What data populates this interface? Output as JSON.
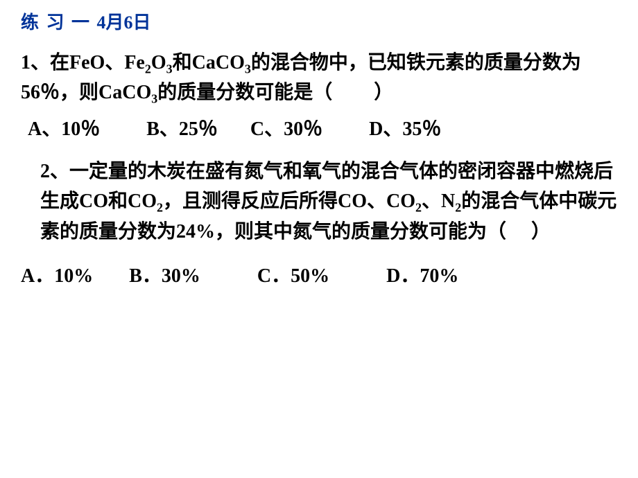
{
  "header": {
    "title": "练 习 一",
    "date": "4月6日",
    "color": "#003399",
    "fontsize": 26
  },
  "question1": {
    "number": "1、",
    "text_parts": {
      "p1": "在FeO、Fe",
      "p2": "O",
      "p3": "和CaCO",
      "p4": "的混合物中，已知铁元素的质量分数为56％，则CaCO",
      "p5": "的质量分数可能是（",
      "p6": "）"
    },
    "subscripts": {
      "s1": "2",
      "s2": "3",
      "s3": "3",
      "s4": "3"
    },
    "options": {
      "a": "A、10％",
      "b": "B、25％",
      "c": "C、30％",
      "d": "D、35％"
    }
  },
  "question2": {
    "number": "2、",
    "text_parts": {
      "p1": "一定量的木炭在盛有氮气和氧气的混合气体的密闭容器中燃烧后生成CO和CO",
      "p2": "，且测得反应后所得CO、CO",
      "p3": "、N",
      "p4": "的混合气体中碳元素的质量分数为24%，则其中氮气的质量分数可能为（",
      "p5": "）"
    },
    "subscripts": {
      "s1": "2",
      "s2": "2",
      "s3": "2"
    },
    "options": {
      "a": "A．10%",
      "b": "B．30%",
      "c": "C．50%",
      "d": "D．70%"
    }
  },
  "styling": {
    "background_color": "#ffffff",
    "text_color": "#000000",
    "body_fontsize": 28,
    "sub_fontsize": 18,
    "font_family": "SimSun"
  }
}
